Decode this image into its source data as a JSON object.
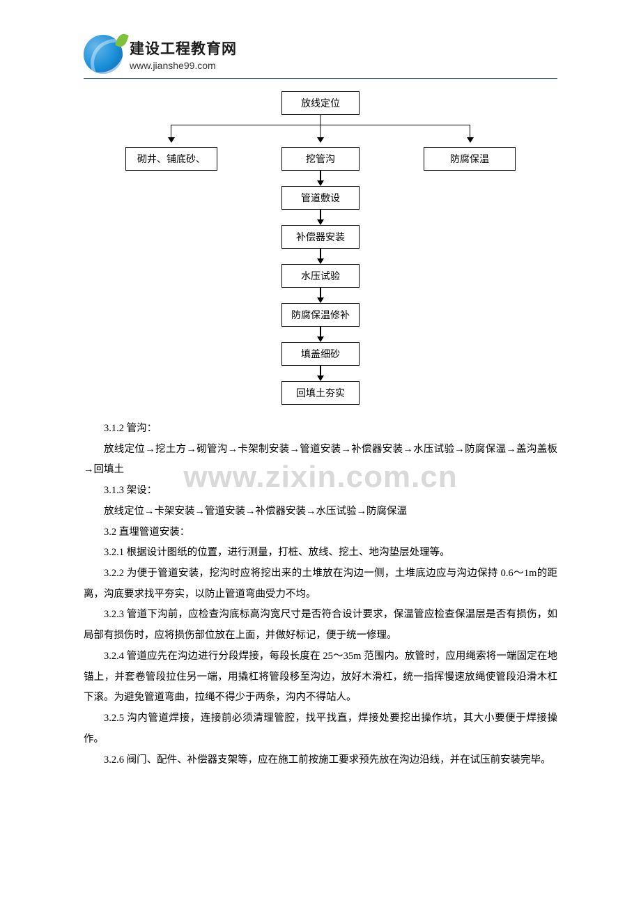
{
  "header": {
    "brand_cn": "建设工程教育网",
    "brand_url": "www.jianshe99.com",
    "underline_color": "#144a8a"
  },
  "watermark": {
    "text": "www.zixin.com.cn",
    "color": "#d9d9d9",
    "fontsize": 44
  },
  "flowchart": {
    "type": "flowchart",
    "node_border_color": "#000000",
    "node_bg_color": "#ffffff",
    "node_fontsize": 14,
    "arrow_color": "#000000",
    "nodes": {
      "n0": "放线定位",
      "left": "砌井、铺底砂、",
      "mid": "挖管沟",
      "right": "防腐保温",
      "n1": "管道敷设",
      "n2": "补偿器安装",
      "n3": "水压试验",
      "n4": "防腐保温修补",
      "n5": "填盖细砂",
      "n6": "回填土夯实"
    },
    "edges": [
      [
        "n0",
        "left"
      ],
      [
        "n0",
        "mid"
      ],
      [
        "n0",
        "right"
      ],
      [
        "mid",
        "n1"
      ],
      [
        "n1",
        "n2"
      ],
      [
        "n2",
        "n3"
      ],
      [
        "n3",
        "n4"
      ],
      [
        "n4",
        "n5"
      ],
      [
        "n5",
        "n6"
      ]
    ]
  },
  "text": {
    "s312_title": "3.1.2 管沟：",
    "s312_body": "放线定位→挖土方→砌管沟→卡架制安装→管道安装→补偿器安装→水压试验→防腐保温→盖沟盖板→回填土",
    "s313_title": "3.1.3 架设：",
    "s313_body": "放线定位→卡架安装→管道安装→补偿器安装→水压试验→防腐保温",
    "s32": "3.2 直埋管道安装：",
    "s321": "3.2.1 根据设计图纸的位置，进行测量，打桩、放线、挖土、地沟垫层处理等。",
    "s322": "3.2.2 为便于管道安装，挖沟时应将挖出来的土堆放在沟边一侧，土堆底边应与沟边保持 0.6～1m的距离，沟底要求找平夯实，以防止管道弯曲受力不均。",
    "s323": "3.2.3 管道下沟前，应检查沟底标高沟宽尺寸是否符合设计要求，保温管应检查保温层是否有损伤，如局部有损伤时，应将损伤部位放在上面，并做好标记，便于统一修理。",
    "s324": "3.2.4 管道应先在沟边进行分段焊接，每段长度在 25～35m 范围内。放管时，应用绳索将一端固定在地锚上，并套卷管段拉住另一端，用撬杠将管段移至沟边，放好木滑杠，统一指挥慢速放绳使管段沿滑木杠下滚。为避免管道弯曲，拉绳不得少于两条，沟内不得站人。",
    "s325": "3.2.5 沟内管道焊接，连接前必须清理管腔，找平找直，焊接处要挖出操作坑，其大小要便于焊接操作。",
    "s326": "3.2.6 阀门、配件、补偿器支架等，应在施工前按施工要求预先放在沟边沿线，并在试压前安装完毕。"
  }
}
